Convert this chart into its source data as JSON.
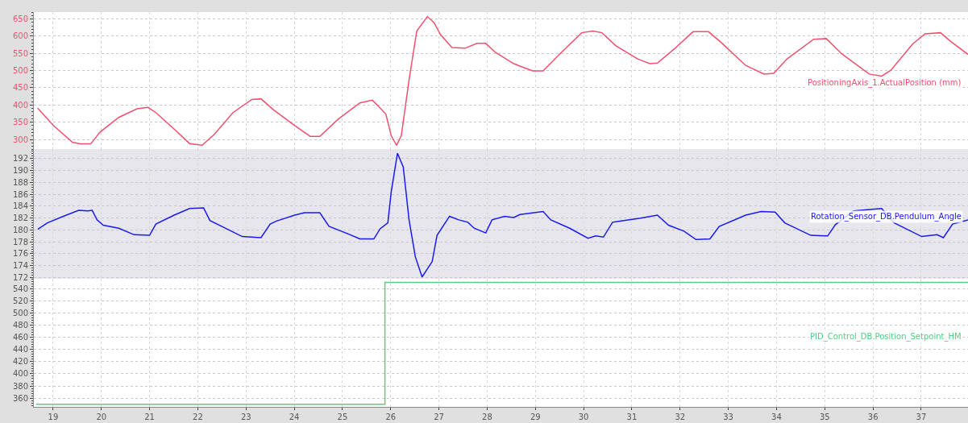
{
  "chart_data": [
    {
      "type": "line",
      "xlim": [
        18.6,
        37.97
      ],
      "xticks": [
        19,
        20,
        21,
        22,
        23,
        24,
        25,
        26,
        27,
        28,
        29,
        30,
        31,
        32,
        33,
        34,
        35,
        36,
        37
      ],
      "ylim": [
        272,
        670
      ],
      "yticks": [
        300,
        350,
        400,
        450,
        500,
        550,
        600,
        650
      ],
      "grid": true,
      "tick_labels": "y",
      "legend": false,
      "series": [
        {
          "name": "PositioningAxis_1.ActualPosition (mm)",
          "color": "#f0506e",
          "x": [
            18.68,
            19.01,
            19.4,
            19.56,
            19.78,
            19.97,
            20.36,
            20.74,
            20.97,
            21.13,
            21.51,
            21.83,
            22.09,
            22.35,
            22.73,
            23.12,
            23.31,
            23.56,
            24.01,
            24.33,
            24.53,
            24.91,
            25.36,
            25.62,
            25.74,
            25.9,
            26.01,
            26.12,
            26.22,
            26.38,
            26.54,
            26.76,
            26.9,
            27.03,
            27.27,
            27.54,
            27.79,
            27.97,
            28.17,
            28.55,
            28.94,
            29.16,
            29.51,
            29.96,
            30.19,
            30.38,
            30.67,
            31.12,
            31.37,
            31.53,
            31.88,
            32.27,
            32.59,
            32.85,
            33.36,
            33.74,
            33.94,
            34.22,
            34.77,
            35.03,
            35.35,
            35.92,
            36.18,
            36.37,
            36.82,
            37.08,
            37.4,
            37.6,
            37.97
          ],
          "values": [
            391,
            340,
            292,
            287,
            287,
            321,
            364,
            389,
            393,
            378,
            330,
            288,
            283,
            316,
            378,
            416,
            418,
            387,
            340,
            309,
            309,
            359,
            406,
            414,
            397,
            373,
            311,
            283,
            311,
            473,
            615,
            657,
            639,
            605,
            567,
            565,
            579,
            579,
            553,
            520,
            499,
            499,
            549,
            610,
            615,
            610,
            572,
            534,
            520,
            522,
            563,
            613,
            613,
            582,
            515,
            490,
            492,
            534,
            591,
            593,
            549,
            490,
            484,
            501,
            577,
            607,
            610,
            586,
            547
          ]
        }
      ]
    },
    {
      "type": "line",
      "xlim": [
        18.6,
        37.97
      ],
      "xticks": [
        19,
        20,
        21,
        22,
        23,
        24,
        25,
        26,
        27,
        28,
        29,
        30,
        31,
        32,
        33,
        34,
        35,
        36,
        37
      ],
      "ylim": [
        171.8,
        193.6
      ],
      "yticks": [
        172,
        174,
        176,
        178,
        180,
        182,
        184,
        186,
        188,
        190,
        192
      ],
      "grid": true,
      "tick_labels": "y",
      "legend": false,
      "series": [
        {
          "name": "Rotation_Sensor_DB.Pendulum_Angle",
          "color": "#1a1aee",
          "x": [
            18.68,
            18.88,
            19.21,
            19.53,
            19.72,
            19.81,
            19.91,
            20.04,
            20.36,
            20.68,
            21.0,
            21.13,
            21.51,
            21.83,
            22.12,
            22.25,
            22.67,
            22.92,
            23.31,
            23.5,
            23.63,
            24.01,
            24.21,
            24.53,
            24.72,
            25.1,
            25.36,
            25.65,
            25.78,
            25.94,
            26.01,
            26.14,
            26.26,
            26.38,
            26.51,
            26.65,
            26.86,
            26.96,
            27.22,
            27.41,
            27.6,
            27.73,
            27.97,
            28.1,
            28.36,
            28.55,
            28.68,
            29.16,
            29.32,
            29.71,
            30.09,
            30.25,
            30.41,
            30.6,
            31.18,
            31.53,
            31.76,
            32.08,
            32.33,
            32.62,
            32.81,
            33.36,
            33.68,
            33.97,
            34.17,
            34.71,
            35.06,
            35.22,
            35.6,
            36.18,
            36.44,
            37.01,
            37.33,
            37.46,
            37.65,
            37.97
          ],
          "values": [
            180.1,
            181.2,
            182.3,
            183.3,
            183.2,
            183.3,
            181.7,
            180.8,
            180.3,
            179.2,
            179.1,
            181.0,
            182.5,
            183.6,
            183.7,
            181.6,
            179.9,
            178.9,
            178.7,
            181.0,
            181.5,
            182.5,
            182.9,
            182.9,
            180.6,
            179.4,
            178.5,
            178.5,
            180.2,
            181.2,
            186.4,
            192.9,
            190.6,
            181.7,
            175.5,
            172.1,
            174.7,
            179.1,
            182.3,
            181.7,
            181.3,
            180.3,
            179.5,
            181.7,
            182.3,
            182.1,
            182.6,
            183.1,
            181.7,
            180.3,
            178.6,
            179.0,
            178.8,
            181.3,
            182.0,
            182.5,
            180.8,
            179.8,
            178.4,
            178.5,
            180.6,
            182.5,
            183.1,
            183.0,
            181.2,
            179.1,
            179.0,
            180.9,
            183.2,
            183.6,
            181.2,
            178.9,
            179.2,
            178.7,
            181.0,
            181.7
          ]
        }
      ]
    },
    {
      "type": "step",
      "xlim": [
        18.6,
        37.97
      ],
      "xticks": [
        19,
        20,
        21,
        22,
        23,
        24,
        25,
        26,
        27,
        28,
        29,
        30,
        31,
        32,
        33,
        34,
        35,
        36,
        37
      ],
      "ylim": [
        345.7,
        556
      ],
      "yticks": [
        360,
        380,
        400,
        420,
        440,
        460,
        480,
        500,
        520,
        540
      ],
      "grid": true,
      "legend": false,
      "series": [
        {
          "name": "PID_Control_DB.Position_Setpoint_HM",
          "color": "#50d080",
          "x": [
            18.65,
            25.88,
            37.97
          ],
          "values": [
            350,
            550,
            550
          ]
        }
      ]
    }
  ]
}
